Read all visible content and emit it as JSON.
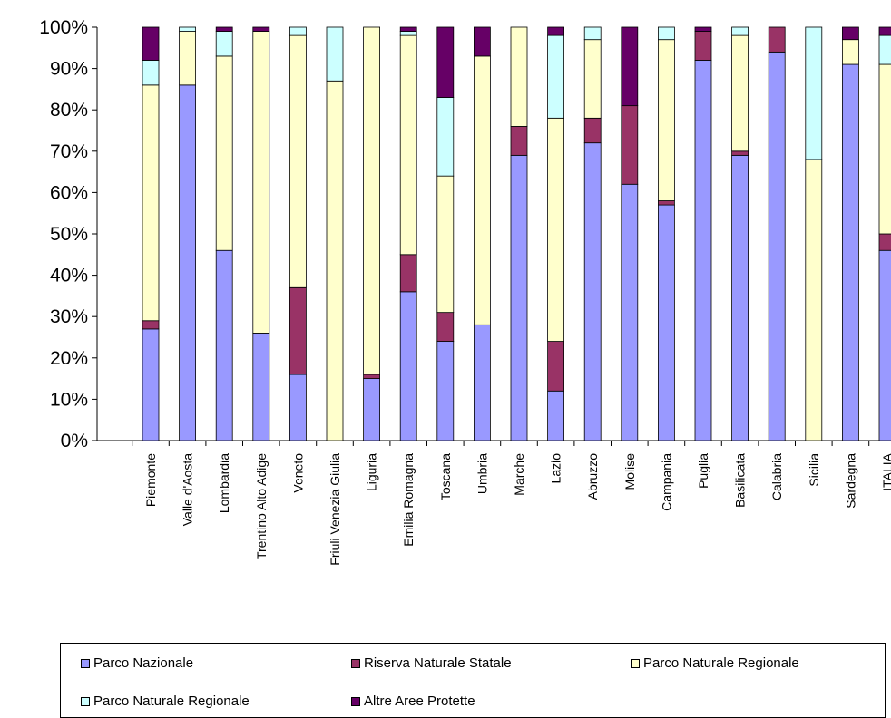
{
  "chart_data": {
    "type": "bar",
    "stacked": true,
    "percent_stacked": true,
    "title": "",
    "xlabel": "",
    "ylabel": "",
    "ylim": [
      0,
      100
    ],
    "y_ticks": [
      "0%",
      "10%",
      "20%",
      "30%",
      "40%",
      "50%",
      "60%",
      "70%",
      "80%",
      "90%",
      "100%"
    ],
    "grid": false,
    "legend_position": "bottom",
    "categories": [
      "Piemonte",
      "Valle d'Aosta",
      "Lombardia",
      "Trentino Alto Adige",
      "Veneto",
      "Friuli Venezia Giulia",
      "Liguria",
      "Emilia Romagna",
      "Toscana",
      "Umbria",
      "Marche",
      "Lazio",
      "Abruzzo",
      "Molise",
      "Campania",
      "Puglia",
      "Basilicata",
      "Calabria",
      "Sicilia",
      "Sardegna",
      "ITALIA"
    ],
    "series": [
      {
        "name": "Parco Nazionale",
        "color": "#9999ff",
        "values": [
          27,
          86,
          46,
          26,
          16,
          0,
          15,
          36,
          24,
          28,
          69,
          12,
          72,
          62,
          57,
          92,
          69,
          94,
          0,
          91,
          46
        ]
      },
      {
        "name": "Riserva Naturale Statale",
        "color": "#993366",
        "values": [
          2,
          0,
          0,
          0,
          21,
          0,
          1,
          9,
          7,
          0,
          7,
          12,
          6,
          19,
          1,
          7,
          1,
          6,
          0,
          0,
          4
        ]
      },
      {
        "name": "Parco Naturale Regionale",
        "color": "#ffffcc",
        "values": [
          57,
          13,
          47,
          73,
          61,
          87,
          84,
          53,
          33,
          65,
          24,
          54,
          19,
          0,
          39,
          0,
          28,
          0,
          68,
          6,
          41
        ]
      },
      {
        "name": "Parco Naturale Regionale",
        "color": "#ccffff",
        "values": [
          6,
          1,
          6,
          0,
          2,
          13,
          0,
          1,
          19,
          0,
          0,
          20,
          3,
          0,
          3,
          0,
          2,
          0,
          32,
          0,
          7
        ]
      },
      {
        "name": "Altre Aree Protette",
        "color": "#660066",
        "values": [
          8,
          0,
          1,
          1,
          0,
          0,
          0,
          1,
          17,
          7,
          0,
          2,
          0,
          19,
          0,
          1,
          0,
          0,
          0,
          3,
          2
        ]
      }
    ]
  }
}
